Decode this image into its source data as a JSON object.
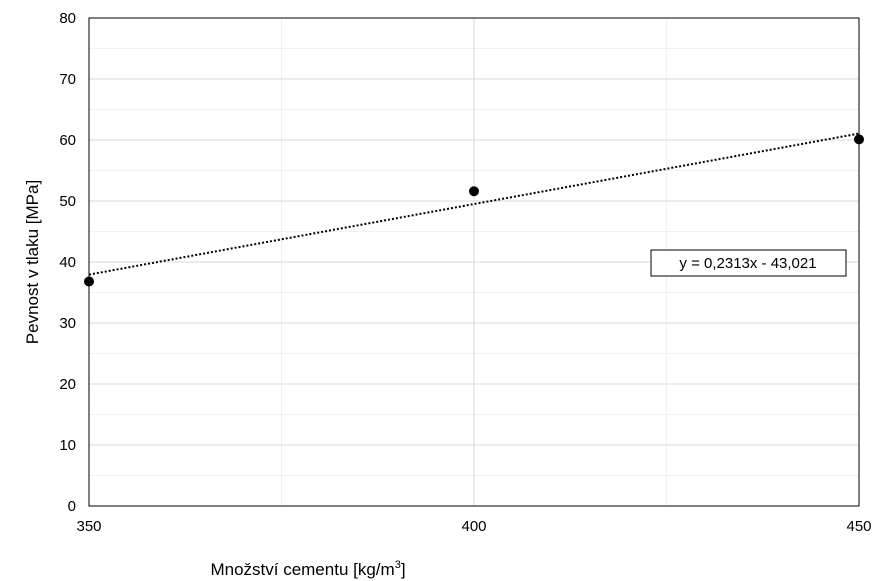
{
  "chart_data": {
    "type": "scatter",
    "title": "",
    "xlabel": "Množství cementu [kg/m",
    "xlabel_sup": "3",
    "xlabel_end": "]",
    "ylabel": "Pevnost v tlaku [MPa]",
    "xlim": [
      350,
      450
    ],
    "ylim": [
      0,
      80
    ],
    "x_ticks": [
      350,
      400,
      450
    ],
    "x_ticklabels": [
      "350",
      "400",
      "450"
    ],
    "x_minor_grid": [
      375,
      425
    ],
    "y_ticks": [
      0,
      10,
      20,
      30,
      40,
      50,
      60,
      70,
      80
    ],
    "y_ticklabels": [
      "0",
      "10",
      "20",
      "30",
      "40",
      "50",
      "60",
      "70",
      "80"
    ],
    "y_minor_grid": [
      5,
      15,
      25,
      35,
      45,
      55,
      65,
      75
    ],
    "grid": true,
    "series": [
      {
        "x": [
          350,
          400,
          450
        ],
        "y": [
          36.8,
          51.6,
          60.1
        ],
        "marker": "circle",
        "color": "#000000"
      }
    ],
    "trendline": {
      "type": "linear",
      "slope": 0.2313,
      "intercept": -43.021,
      "style": "dotted",
      "color": "#000000",
      "equation_label": "y = 0,2313x - 43,021"
    }
  }
}
